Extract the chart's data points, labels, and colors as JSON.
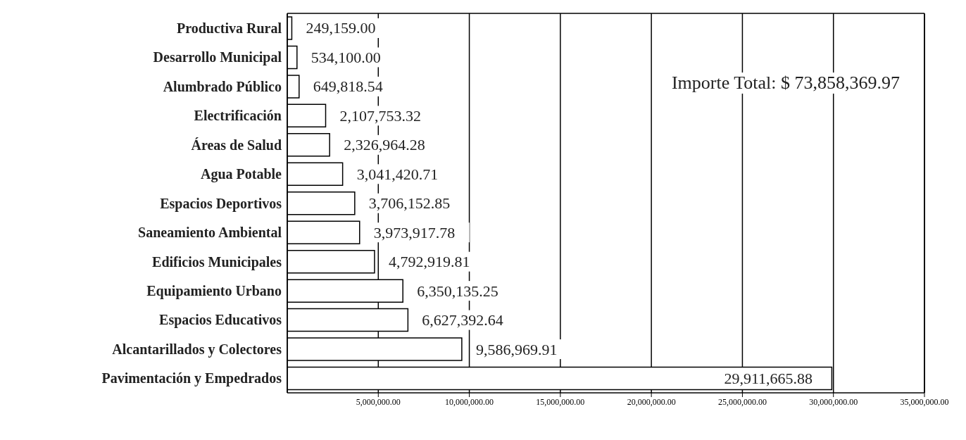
{
  "chart_data": {
    "type": "bar",
    "orientation": "horizontal",
    "categories": [
      "Productiva Rural",
      "Desarrollo Municipal",
      "Alumbrado Público",
      "Electrificación",
      "Áreas de Salud",
      "Agua Potable",
      "Espacios Deportivos",
      "Saneamiento Ambiental",
      "Edificios Municipales",
      "Equipamiento Urbano",
      "Espacios Educativos",
      "Alcantarillados y Colectores",
      "Pavimentación y Empedrados"
    ],
    "values": [
      249159.0,
      534100.0,
      649818.54,
      2107753.32,
      2326964.28,
      3041420.71,
      3706152.85,
      3973917.78,
      4792919.81,
      6350135.25,
      6627392.64,
      9586969.91,
      29911665.88
    ],
    "value_labels": [
      "249,159.00",
      "534,100.00",
      "649,818.54",
      "2,107,753.32",
      "2,326,964.28",
      "3,041,420.71",
      "3,706,152.85",
      "3,973,917.78",
      "4,792,919.81",
      "6,350,135.25",
      "6,627,392.64",
      "9,586,969.91",
      "29,911,665.88"
    ],
    "color": "#ffffff",
    "xlim": [
      0,
      35000000
    ],
    "xticks": [
      {
        "value": 5000000,
        "label": "5,000,000.00"
      },
      {
        "value": 10000000,
        "label": "10,000,000.00"
      },
      {
        "value": 15000000,
        "label": "15,000,000.00"
      },
      {
        "value": 20000000,
        "label": "20,000,000.00"
      },
      {
        "value": 25000000,
        "label": "25,000,000.00"
      },
      {
        "value": 30000000,
        "label": "30,000,000.00"
      },
      {
        "value": 35000000,
        "label": "35,000,000.00"
      }
    ],
    "grid": "x",
    "annotations": [
      "Importe Total: $ 73,858,369.97"
    ]
  }
}
